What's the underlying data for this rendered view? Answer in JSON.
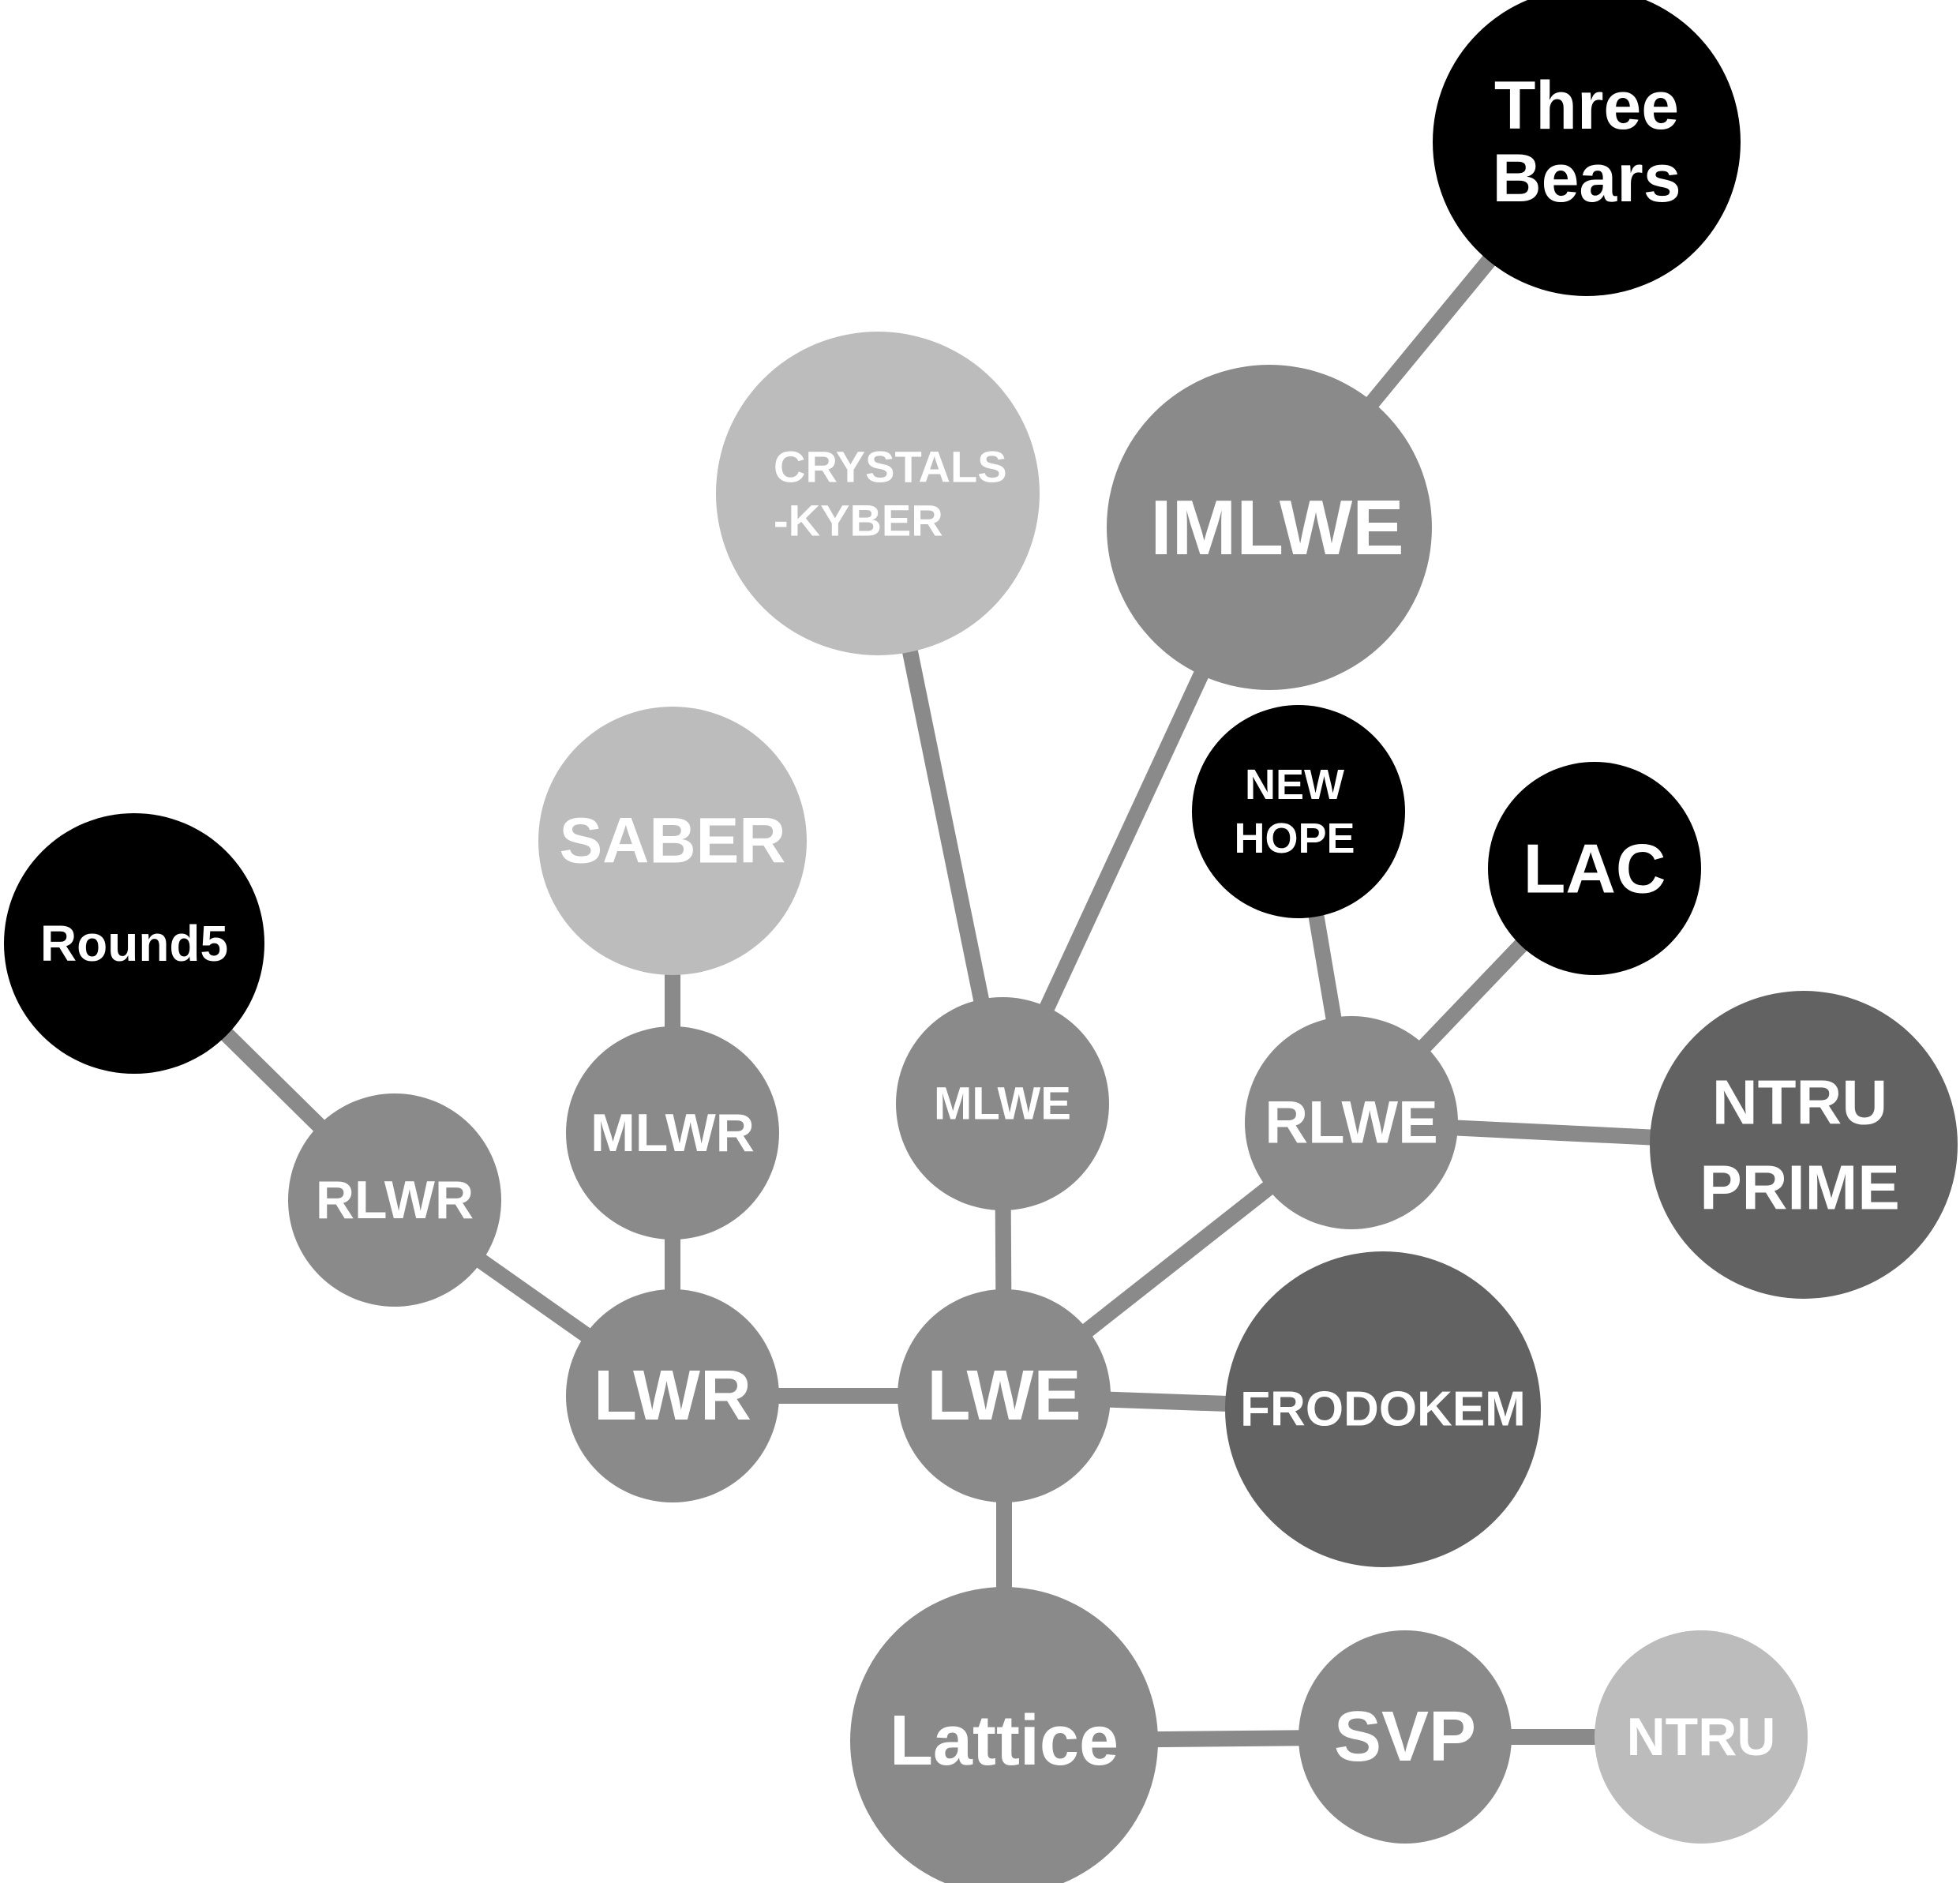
{
  "colors": {
    "edge": "#8a8a8a",
    "mid_gray": "#8a8a8a",
    "light_gray": "#bcbcbc",
    "dark_gray": "#626262",
    "black": "#000000",
    "label": "#ffffff"
  },
  "nodes": [
    {
      "id": "three-bears",
      "lines": [
        "Three",
        "Bears"
      ],
      "shade": "black"
    },
    {
      "id": "imlwe",
      "lines": [
        "IMLWE"
      ],
      "shade": "mid_gray"
    },
    {
      "id": "crystals-kyber",
      "lines": [
        "CRYSTALS",
        "-KYBER"
      ],
      "shade": "light_gray"
    },
    {
      "id": "saber",
      "lines": [
        "SABER"
      ],
      "shade": "light_gray"
    },
    {
      "id": "new-hope",
      "lines": [
        "NEW",
        "HOPE"
      ],
      "shade": "black"
    },
    {
      "id": "lac",
      "lines": [
        "LAC"
      ],
      "shade": "black"
    },
    {
      "id": "round5",
      "lines": [
        "Round5"
      ],
      "shade": "black"
    },
    {
      "id": "rlwr",
      "lines": [
        "RLWR"
      ],
      "shade": "mid_gray"
    },
    {
      "id": "mlwr",
      "lines": [
        "MLWR"
      ],
      "shade": "mid_gray"
    },
    {
      "id": "mlwe",
      "lines": [
        "MLWE"
      ],
      "shade": "mid_gray"
    },
    {
      "id": "rlwe",
      "lines": [
        "RLWE"
      ],
      "shade": "mid_gray"
    },
    {
      "id": "ntru-prime",
      "lines": [
        "NTRU",
        "PRIME"
      ],
      "shade": "dark_gray"
    },
    {
      "id": "lwr",
      "lines": [
        "LWR"
      ],
      "shade": "mid_gray"
    },
    {
      "id": "lwe",
      "lines": [
        "LWE"
      ],
      "shade": "mid_gray"
    },
    {
      "id": "frodokem",
      "lines": [
        "FRODOKEM"
      ],
      "shade": "dark_gray"
    },
    {
      "id": "lattice",
      "lines": [
        "Lattice"
      ],
      "shade": "mid_gray"
    },
    {
      "id": "svp",
      "lines": [
        "SVP"
      ],
      "shade": "mid_gray"
    },
    {
      "id": "ntru",
      "lines": [
        "NTRU"
      ],
      "shade": "light_gray"
    }
  ],
  "edges": [
    {
      "from": "lattice",
      "to": "lwe"
    },
    {
      "from": "lattice",
      "to": "svp"
    },
    {
      "from": "svp",
      "to": "ntru"
    },
    {
      "from": "lwe",
      "to": "lwr"
    },
    {
      "from": "lwe",
      "to": "frodokem"
    },
    {
      "from": "lwe",
      "to": "mlwe"
    },
    {
      "from": "lwe",
      "to": "rlwe"
    },
    {
      "from": "lwr",
      "to": "rlwr"
    },
    {
      "from": "lwr",
      "to": "mlwr"
    },
    {
      "from": "rlwr",
      "to": "round5"
    },
    {
      "from": "mlwr",
      "to": "saber"
    },
    {
      "from": "mlwe",
      "to": "crystals-kyber"
    },
    {
      "from": "mlwe",
      "to": "imlwe"
    },
    {
      "from": "imlwe",
      "to": "three-bears"
    },
    {
      "from": "rlwe",
      "to": "new-hope"
    },
    {
      "from": "rlwe",
      "to": "lac"
    },
    {
      "from": "rlwe",
      "to": "ntru-prime"
    }
  ]
}
